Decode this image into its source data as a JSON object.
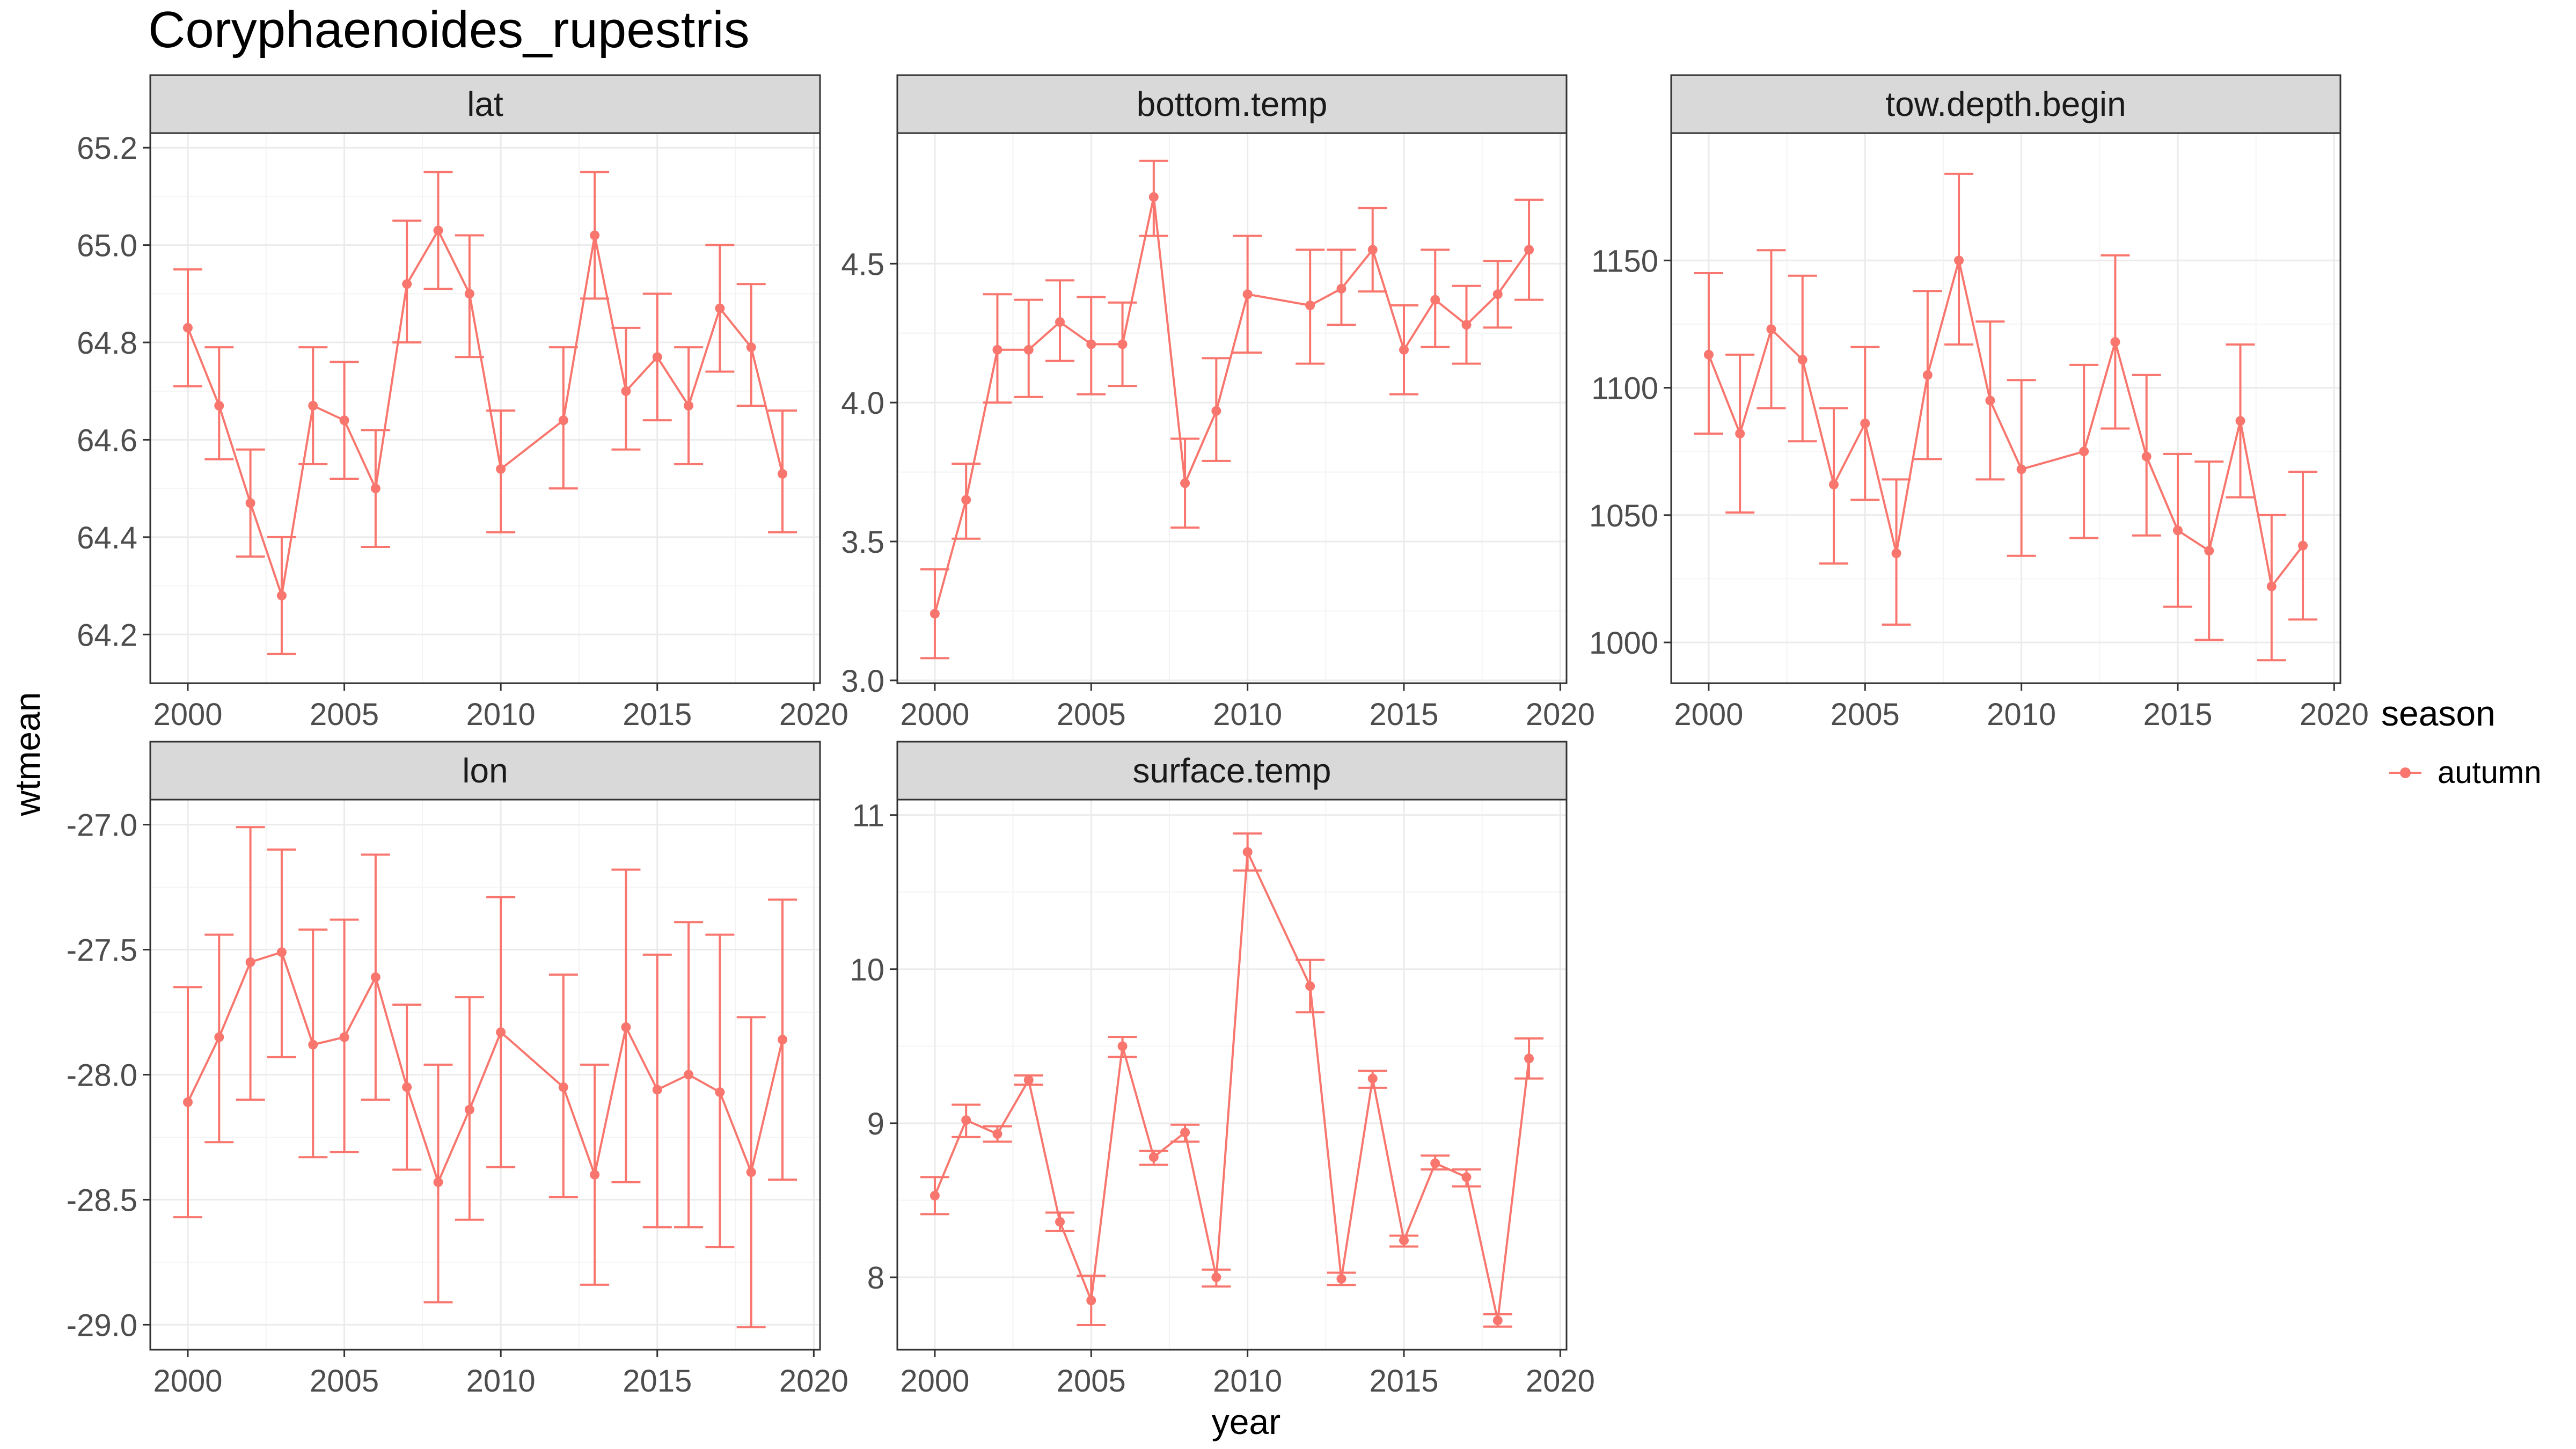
{
  "chart_data": {
    "type": "line",
    "title": "Coryphaenoides_rupestris",
    "xlabel": "year",
    "ylabel": "wtmean",
    "xlim": [
      1998.8,
      2020.2
    ],
    "x_ticks": [
      2000,
      2005,
      2010,
      2015,
      2020
    ],
    "grid": true,
    "legend": {
      "title": "season",
      "entries": [
        "autumn"
      ],
      "placement": "right"
    },
    "colors": {
      "series": "#F8766D",
      "strip": "#d9d9d9",
      "panel_border": "#333333",
      "grid": "#ebebeb"
    },
    "panels": [
      {
        "name": "lat",
        "ylim": [
          64.1,
          65.23
        ],
        "y_ticks": [
          64.2,
          64.4,
          64.6,
          64.8,
          65.0,
          65.2
        ],
        "y_tick_labels": [
          "64.2",
          "64.4",
          "64.6",
          "64.8",
          "65.0",
          "65.2"
        ],
        "points": [
          {
            "x": 2000,
            "y": 64.83,
            "lo": 64.71,
            "hi": 64.95
          },
          {
            "x": 2001,
            "y": 64.67,
            "lo": 64.56,
            "hi": 64.79
          },
          {
            "x": 2002,
            "y": 64.47,
            "lo": 64.36,
            "hi": 64.58
          },
          {
            "x": 2003,
            "y": 64.28,
            "lo": 64.16,
            "hi": 64.4
          },
          {
            "x": 2004,
            "y": 64.67,
            "lo": 64.55,
            "hi": 64.79
          },
          {
            "x": 2005,
            "y": 64.64,
            "lo": 64.52,
            "hi": 64.76
          },
          {
            "x": 2006,
            "y": 64.5,
            "lo": 64.38,
            "hi": 64.62
          },
          {
            "x": 2007,
            "y": 64.92,
            "lo": 64.8,
            "hi": 65.05
          },
          {
            "x": 2008,
            "y": 65.03,
            "lo": 64.91,
            "hi": 65.15
          },
          {
            "x": 2009,
            "y": 64.9,
            "lo": 64.77,
            "hi": 65.02
          },
          {
            "x": 2010,
            "y": 64.54,
            "lo": 64.41,
            "hi": 64.66
          },
          {
            "x": 2012,
            "y": 64.64,
            "lo": 64.5,
            "hi": 64.79
          },
          {
            "x": 2013,
            "y": 65.02,
            "lo": 64.89,
            "hi": 65.15
          },
          {
            "x": 2014,
            "y": 64.7,
            "lo": 64.58,
            "hi": 64.83
          },
          {
            "x": 2015,
            "y": 64.77,
            "lo": 64.64,
            "hi": 64.9
          },
          {
            "x": 2016,
            "y": 64.67,
            "lo": 64.55,
            "hi": 64.79
          },
          {
            "x": 2017,
            "y": 64.87,
            "lo": 64.74,
            "hi": 65.0
          },
          {
            "x": 2018,
            "y": 64.79,
            "lo": 64.67,
            "hi": 64.92
          },
          {
            "x": 2019,
            "y": 64.53,
            "lo": 64.41,
            "hi": 64.66
          }
        ]
      },
      {
        "name": "bottom.temp",
        "ylim": [
          2.99,
          4.97
        ],
        "y_ticks": [
          3.0,
          3.5,
          4.0,
          4.5
        ],
        "y_tick_labels": [
          "3.0",
          "3.5",
          "4.0",
          "4.5"
        ],
        "points": [
          {
            "x": 2000,
            "y": 3.24,
            "lo": 3.08,
            "hi": 3.4
          },
          {
            "x": 2001,
            "y": 3.65,
            "lo": 3.51,
            "hi": 3.78
          },
          {
            "x": 2002,
            "y": 4.19,
            "lo": 4.0,
            "hi": 4.39
          },
          {
            "x": 2003,
            "y": 4.19,
            "lo": 4.02,
            "hi": 4.37
          },
          {
            "x": 2004,
            "y": 4.29,
            "lo": 4.15,
            "hi": 4.44
          },
          {
            "x": 2005,
            "y": 4.21,
            "lo": 4.03,
            "hi": 4.38
          },
          {
            "x": 2006,
            "y": 4.21,
            "lo": 4.06,
            "hi": 4.36
          },
          {
            "x": 2007,
            "y": 4.74,
            "lo": 4.6,
            "hi": 4.87
          },
          {
            "x": 2008,
            "y": 3.71,
            "lo": 3.55,
            "hi": 3.87
          },
          {
            "x": 2009,
            "y": 3.97,
            "lo": 3.79,
            "hi": 4.16
          },
          {
            "x": 2010,
            "y": 4.39,
            "lo": 4.18,
            "hi": 4.6
          },
          {
            "x": 2012,
            "y": 4.35,
            "lo": 4.14,
            "hi": 4.55
          },
          {
            "x": 2013,
            "y": 4.41,
            "lo": 4.28,
            "hi": 4.55
          },
          {
            "x": 2014,
            "y": 4.55,
            "lo": 4.4,
            "hi": 4.7
          },
          {
            "x": 2015,
            "y": 4.19,
            "lo": 4.03,
            "hi": 4.35
          },
          {
            "x": 2016,
            "y": 4.37,
            "lo": 4.2,
            "hi": 4.55
          },
          {
            "x": 2017,
            "y": 4.28,
            "lo": 4.14,
            "hi": 4.42
          },
          {
            "x": 2018,
            "y": 4.39,
            "lo": 4.27,
            "hi": 4.51
          },
          {
            "x": 2019,
            "y": 4.55,
            "lo": 4.37,
            "hi": 4.73
          }
        ]
      },
      {
        "name": "tow.depth.begin",
        "ylim": [
          984,
          1200
        ],
        "y_ticks": [
          1000,
          1050,
          1100,
          1150
        ],
        "y_tick_labels": [
          "1000",
          "1050",
          "1100",
          "1150"
        ],
        "points": [
          {
            "x": 2000,
            "y": 1113,
            "lo": 1082,
            "hi": 1145
          },
          {
            "x": 2001,
            "y": 1082,
            "lo": 1051,
            "hi": 1113
          },
          {
            "x": 2002,
            "y": 1123,
            "lo": 1092,
            "hi": 1154
          },
          {
            "x": 2003,
            "y": 1111,
            "lo": 1079,
            "hi": 1144
          },
          {
            "x": 2004,
            "y": 1062,
            "lo": 1031,
            "hi": 1092
          },
          {
            "x": 2005,
            "y": 1086,
            "lo": 1056,
            "hi": 1116
          },
          {
            "x": 2006,
            "y": 1035,
            "lo": 1007,
            "hi": 1064
          },
          {
            "x": 2007,
            "y": 1105,
            "lo": 1072,
            "hi": 1138
          },
          {
            "x": 2008,
            "y": 1150,
            "lo": 1117,
            "hi": 1184
          },
          {
            "x": 2009,
            "y": 1095,
            "lo": 1064,
            "hi": 1126
          },
          {
            "x": 2010,
            "y": 1068,
            "lo": 1034,
            "hi": 1103
          },
          {
            "x": 2012,
            "y": 1075,
            "lo": 1041,
            "hi": 1109
          },
          {
            "x": 2013,
            "y": 1118,
            "lo": 1084,
            "hi": 1152
          },
          {
            "x": 2014,
            "y": 1073,
            "lo": 1042,
            "hi": 1105
          },
          {
            "x": 2015,
            "y": 1044,
            "lo": 1014,
            "hi": 1074
          },
          {
            "x": 2016,
            "y": 1036,
            "lo": 1001,
            "hi": 1071
          },
          {
            "x": 2017,
            "y": 1087,
            "lo": 1057,
            "hi": 1117
          },
          {
            "x": 2018,
            "y": 1022,
            "lo": 993,
            "hi": 1050
          },
          {
            "x": 2019,
            "y": 1038,
            "lo": 1009,
            "hi": 1067
          }
        ]
      },
      {
        "name": "lon",
        "ylim": [
          -29.1,
          -26.9
        ],
        "y_ticks": [
          -29.0,
          -28.5,
          -28.0,
          -27.5,
          -27.0
        ],
        "y_tick_labels": [
          "-29.0",
          "-28.5",
          "-28.0",
          "-27.5",
          "-27.0"
        ],
        "points": [
          {
            "x": 2000,
            "y": -28.11,
            "lo": -28.57,
            "hi": -27.65
          },
          {
            "x": 2001,
            "y": -27.85,
            "lo": -28.27,
            "hi": -27.44
          },
          {
            "x": 2002,
            "y": -27.55,
            "lo": -28.1,
            "hi": -27.01
          },
          {
            "x": 2003,
            "y": -27.51,
            "lo": -27.93,
            "hi": -27.1
          },
          {
            "x": 2004,
            "y": -27.88,
            "lo": -28.33,
            "hi": -27.42
          },
          {
            "x": 2005,
            "y": -27.85,
            "lo": -28.31,
            "hi": -27.38
          },
          {
            "x": 2006,
            "y": -27.61,
            "lo": -28.1,
            "hi": -27.12
          },
          {
            "x": 2007,
            "y": -28.05,
            "lo": -28.38,
            "hi": -27.72
          },
          {
            "x": 2008,
            "y": -28.43,
            "lo": -28.91,
            "hi": -27.96
          },
          {
            "x": 2009,
            "y": -28.14,
            "lo": -28.58,
            "hi": -27.69
          },
          {
            "x": 2010,
            "y": -27.83,
            "lo": -28.37,
            "hi": -27.29
          },
          {
            "x": 2012,
            "y": -28.05,
            "lo": -28.49,
            "hi": -27.6
          },
          {
            "x": 2013,
            "y": -28.4,
            "lo": -28.84,
            "hi": -27.96
          },
          {
            "x": 2014,
            "y": -27.81,
            "lo": -28.43,
            "hi": -27.18
          },
          {
            "x": 2015,
            "y": -28.06,
            "lo": -28.61,
            "hi": -27.52
          },
          {
            "x": 2016,
            "y": -28.0,
            "lo": -28.61,
            "hi": -27.39
          },
          {
            "x": 2017,
            "y": -28.07,
            "lo": -28.69,
            "hi": -27.44
          },
          {
            "x": 2018,
            "y": -28.39,
            "lo": -29.01,
            "hi": -27.77
          },
          {
            "x": 2019,
            "y": -27.86,
            "lo": -28.42,
            "hi": -27.3
          }
        ]
      },
      {
        "name": "surface.temp",
        "ylim": [
          7.53,
          11.1
        ],
        "y_ticks": [
          8,
          9,
          10,
          11
        ],
        "y_tick_labels": [
          "8",
          "9",
          "10",
          "11"
        ],
        "points": [
          {
            "x": 2000,
            "y": 8.53,
            "lo": 8.41,
            "hi": 8.65
          },
          {
            "x": 2001,
            "y": 9.02,
            "lo": 8.91,
            "hi": 9.12
          },
          {
            "x": 2002,
            "y": 8.93,
            "lo": 8.88,
            "hi": 8.98
          },
          {
            "x": 2003,
            "y": 9.28,
            "lo": 9.25,
            "hi": 9.31
          },
          {
            "x": 2004,
            "y": 8.36,
            "lo": 8.3,
            "hi": 8.42
          },
          {
            "x": 2005,
            "y": 7.85,
            "lo": 7.69,
            "hi": 8.01
          },
          {
            "x": 2006,
            "y": 9.5,
            "lo": 9.43,
            "hi": 9.56
          },
          {
            "x": 2007,
            "y": 8.78,
            "lo": 8.73,
            "hi": 8.82
          },
          {
            "x": 2008,
            "y": 8.94,
            "lo": 8.88,
            "hi": 8.99
          },
          {
            "x": 2009,
            "y": 8.0,
            "lo": 7.94,
            "hi": 8.05
          },
          {
            "x": 2010,
            "y": 10.76,
            "lo": 10.64,
            "hi": 10.88
          },
          {
            "x": 2012,
            "y": 9.89,
            "lo": 9.72,
            "hi": 10.06
          },
          {
            "x": 2013,
            "y": 7.99,
            "lo": 7.95,
            "hi": 8.03
          },
          {
            "x": 2014,
            "y": 9.29,
            "lo": 9.23,
            "hi": 9.34
          },
          {
            "x": 2015,
            "y": 8.24,
            "lo": 8.2,
            "hi": 8.27
          },
          {
            "x": 2016,
            "y": 8.74,
            "lo": 8.7,
            "hi": 8.79
          },
          {
            "x": 2017,
            "y": 8.65,
            "lo": 8.59,
            "hi": 8.7
          },
          {
            "x": 2018,
            "y": 7.72,
            "lo": 7.68,
            "hi": 7.76
          },
          {
            "x": 2019,
            "y": 9.42,
            "lo": 9.29,
            "hi": 9.55
          }
        ]
      }
    ]
  }
}
